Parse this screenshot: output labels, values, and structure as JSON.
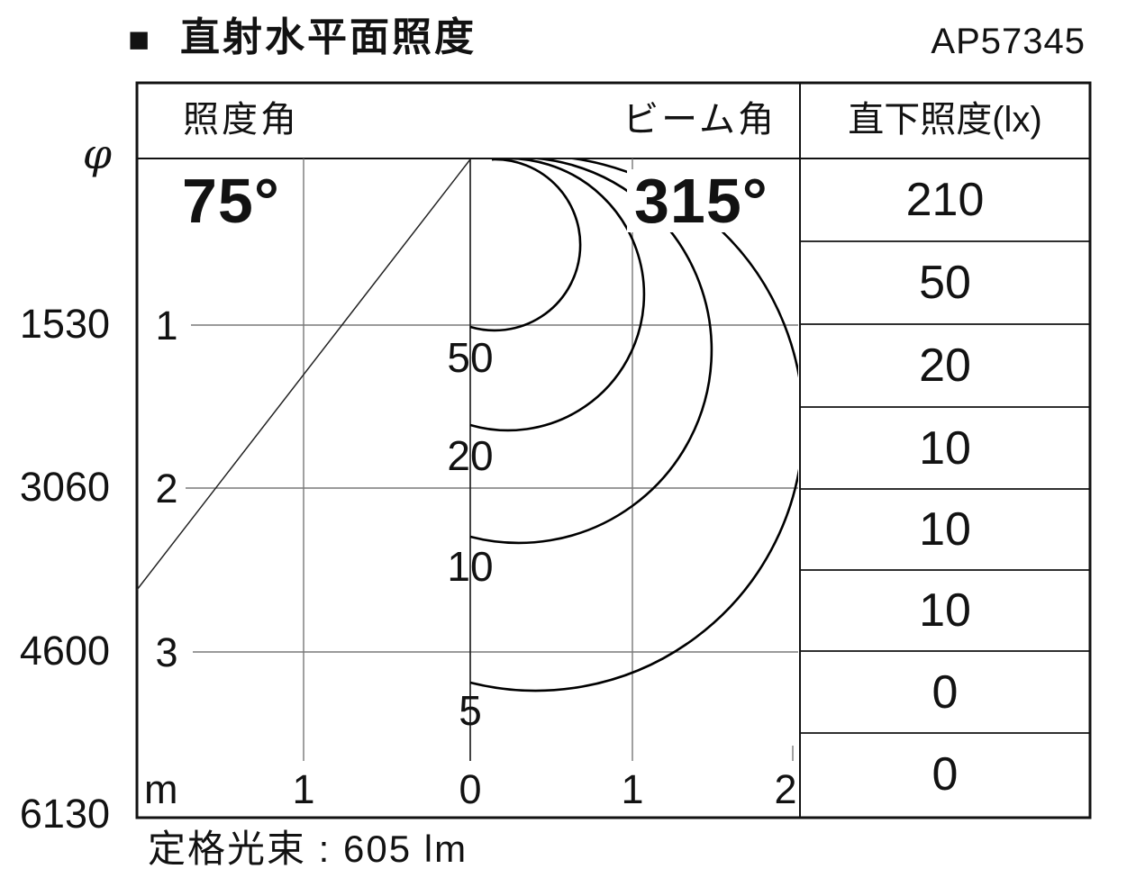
{
  "page": {
    "title_marker": "■",
    "title": "直射水平面照度",
    "model": "AP57345",
    "footer_note": "定格光束 : 605 lm"
  },
  "colors": {
    "ink": "#121212",
    "grid": "#787878",
    "bg": "#ffffff"
  },
  "chart_data": {
    "type": "isolux_cone_diagram",
    "title": "直射水平面照度",
    "model": "AP57345",
    "rated_flux_lm": 605,
    "illuminance_angle_deg": 75,
    "beam_angle_deg": 315,
    "labels": {
      "illuminance_angle_header": "照度角",
      "beam_angle_header": "ビーム角",
      "direct_illuminance_header": "直下照度(lx)",
      "illuminance_angle_value": "75°",
      "beam_angle_value": "315°"
    },
    "axes": {
      "phi_label": "φ",
      "phi_diameters_mm": [
        "1530",
        "3060",
        "4600",
        "6130"
      ],
      "distance_m_ticks": [
        "1",
        "2",
        "3"
      ],
      "x_unit": "m",
      "x_tick_labels": [
        "1",
        "0",
        "1",
        "2"
      ],
      "x_range_m": [
        -2,
        2
      ],
      "y_range_m": [
        0,
        4
      ],
      "grid": true
    },
    "isolux_contours": [
      {
        "lux": "50",
        "depth_m": 1.02
      },
      {
        "lux": "20",
        "depth_m": 1.62
      },
      {
        "lux": "10",
        "depth_m": 2.3
      },
      {
        "lux": "5",
        "depth_m": 3.19
      }
    ],
    "direct_illuminance_lx_by_meter": [
      "210",
      "50",
      "20",
      "10",
      "10",
      "10",
      "0",
      "0"
    ]
  }
}
